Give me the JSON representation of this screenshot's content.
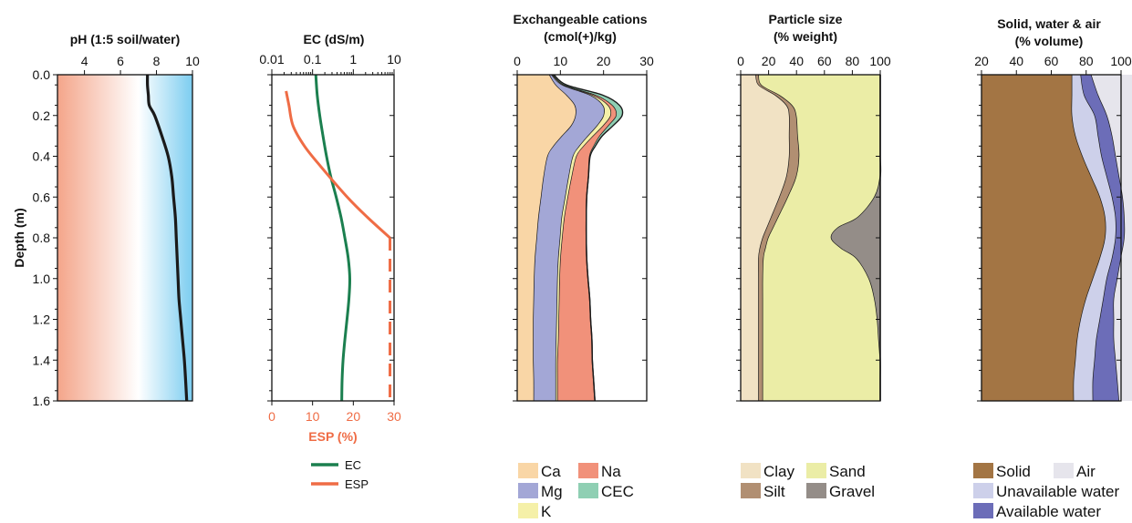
{
  "depth_axis": {
    "label": "Depth (m)",
    "ticks": [
      "0.0",
      "0.2",
      "0.4",
      "0.6",
      "0.8",
      "1.0",
      "1.2",
      "1.4",
      "1.6"
    ]
  },
  "colors": {
    "ph_acid": "#f4a58a",
    "ph_alk": "#7ccdf0",
    "curve": "#1a1a1a",
    "ec": "#1b7f4f",
    "esp": "#ef6c45",
    "Ca": "#f9d6a6",
    "Mg": "#a3a7d6",
    "K": "#f5f0a8",
    "Na": "#f1917a",
    "CEC": "#8fcfb3",
    "Clay": "#f1e2c4",
    "Silt": "#b18f72",
    "Sand": "#ebeda6",
    "Gravel": "#948d88",
    "Solid": "#a37544",
    "Unavailable water": "#cdd0ea",
    "Available water": "#6c6db8",
    "Air": "#e6e5ec"
  },
  "chart_data": [
    {
      "type": "line",
      "title": "pH (1:5 soil/water)",
      "ylabel": "Depth (m)",
      "xlim": [
        2.5,
        10
      ],
      "ylim": [
        0,
        1.6
      ],
      "xticks": [
        "4",
        "6",
        "8",
        "10"
      ],
      "series": [
        {
          "depth": [
            0,
            0.05,
            0.1,
            0.15,
            0.2,
            0.3,
            0.4,
            0.5,
            0.6,
            0.7,
            0.8,
            0.9,
            1.0,
            1.1,
            1.2,
            1.3,
            1.4,
            1.5,
            1.6
          ],
          "ph": [
            7.5,
            7.5,
            7.55,
            7.6,
            7.9,
            8.3,
            8.65,
            8.85,
            8.95,
            9.05,
            9.1,
            9.15,
            9.2,
            9.25,
            9.35,
            9.45,
            9.55,
            9.62,
            9.68
          ]
        }
      ]
    },
    {
      "type": "line",
      "title": "EC (dS/m)",
      "xscale": "log",
      "xlim": [
        0.01,
        10
      ],
      "xticks": [
        "0.01",
        "0.1",
        "1",
        "10"
      ],
      "x2label": "ESP (%)",
      "x2lim": [
        0,
        30
      ],
      "x2ticks": [
        "0",
        "10",
        "20",
        "30"
      ],
      "series": [
        {
          "name": "EC",
          "depth": [
            0.0,
            0.1,
            0.2,
            0.3,
            0.4,
            0.5,
            0.6,
            0.7,
            0.8,
            0.9,
            1.0,
            1.1,
            1.2,
            1.3,
            1.4,
            1.5,
            1.6
          ],
          "ec": [
            0.12,
            0.13,
            0.15,
            0.18,
            0.22,
            0.28,
            0.38,
            0.5,
            0.62,
            0.75,
            0.82,
            0.78,
            0.7,
            0.62,
            0.56,
            0.53,
            0.52
          ]
        },
        {
          "name": "ESP",
          "depth": [
            0.08,
            0.15,
            0.25,
            0.35,
            0.45,
            0.6,
            0.7,
            0.8
          ],
          "esp": [
            3.5,
            4.2,
            5.2,
            8,
            12,
            18.5,
            23.5,
            29
          ]
        },
        {
          "name": "ESP (below)",
          "style": "dashed",
          "depth": [
            0.8,
            1.6
          ],
          "esp": [
            29,
            29
          ]
        }
      ],
      "legend": [
        "EC",
        "ESP"
      ]
    },
    {
      "type": "area",
      "title": "Exchangeable cations\n(cmol(+)/kg)",
      "xlim": [
        0,
        30
      ],
      "xticks": [
        "0",
        "10",
        "20",
        "30"
      ],
      "depth": [
        0,
        0.05,
        0.1,
        0.15,
        0.2,
        0.25,
        0.3,
        0.35,
        0.4,
        0.5,
        0.6,
        0.7,
        0.8,
        0.9,
        1.0,
        1.1,
        1.2,
        1.3,
        1.4,
        1.5,
        1.6
      ],
      "series": [
        {
          "name": "Ca",
          "values": [
            7.5,
            9,
            11.5,
            13.4,
            13.6,
            12.6,
            10.5,
            8.5,
            7.1,
            6.2,
            5.6,
            5,
            4.6,
            4.2,
            4,
            3.9,
            3.8,
            3.8,
            3.8,
            3.9,
            3.9
          ]
        },
        {
          "name": "Mg",
          "values": [
            0.5,
            1.5,
            5.5,
            6.5,
            6.5,
            6,
            6,
            6,
            5.9,
            5.8,
            5.6,
            5.4,
            5.4,
            5.4,
            5.4,
            5.4,
            5.4,
            5.3,
            5.2,
            5.1,
            5.1
          ]
        },
        {
          "name": "K",
          "values": [
            0.2,
            0.3,
            0.6,
            1.2,
            1.6,
            1.4,
            1.2,
            1,
            0.8,
            0.7,
            0.6,
            0.6,
            0.5,
            0.5,
            0.5,
            0.5,
            0.5,
            0.5,
            0.4,
            0.4,
            0.4
          ]
        },
        {
          "name": "Na",
          "values": [
            0.1,
            0.2,
            0.7,
            1,
            1.3,
            1.2,
            1.5,
            2.3,
            3,
            3.8,
            4.3,
            5,
            5.5,
            6,
            6.5,
            7,
            7.3,
            7.7,
            8,
            8.3,
            8.6
          ]
        },
        {
          "name": "CEC",
          "values": [
            0.2,
            0.4,
            1.5,
            1.6,
            1.3,
            1,
            0.5,
            0.3,
            0.1,
            0,
            0,
            0,
            0,
            0,
            0,
            0,
            0,
            0,
            0,
            0,
            0
          ]
        }
      ],
      "legend": [
        "Ca",
        "Na",
        "Mg",
        "CEC",
        "K"
      ]
    },
    {
      "type": "area",
      "title": "Particle size\n(% weight)",
      "xlim": [
        0,
        100
      ],
      "xticks": [
        "0",
        "20",
        "40",
        "60",
        "80",
        "100"
      ],
      "depth": [
        0,
        0.05,
        0.1,
        0.15,
        0.2,
        0.3,
        0.4,
        0.5,
        0.6,
        0.7,
        0.75,
        0.8,
        0.85,
        0.9,
        1.0,
        1.1,
        1.2,
        1.3,
        1.4,
        1.5,
        1.6
      ],
      "series": [
        {
          "name": "Clay",
          "values": [
            11,
            13,
            25,
            33,
            35,
            35,
            35,
            33,
            28,
            22,
            19,
            16,
            14,
            13,
            13,
            13,
            13,
            13,
            13,
            13,
            13
          ]
        },
        {
          "name": "Silt",
          "values": [
            2,
            2,
            3,
            4,
            5,
            6,
            7,
            7,
            6,
            5,
            4.5,
            4,
            4,
            3.5,
            3,
            3,
            3,
            3,
            3,
            3,
            3
          ]
        },
        {
          "name": "Sand",
          "values": [
            87,
            85,
            72,
            63,
            60,
            59,
            58,
            60,
            62,
            57,
            46.5,
            45,
            54,
            66.5,
            76,
            80,
            82,
            83,
            84,
            84,
            84
          ]
        },
        {
          "name": "Gravel",
          "values": [
            0,
            0,
            0,
            0,
            0,
            0,
            0,
            0,
            4,
            16,
            30,
            35,
            28,
            17,
            8,
            4,
            2,
            1,
            0,
            0,
            0
          ]
        }
      ],
      "legend": [
        "Clay",
        "Sand",
        "Silt",
        "Gravel"
      ]
    },
    {
      "type": "area",
      "title": "Solid, water & air\n(% volume)",
      "xlim": [
        20,
        100
      ],
      "xticks": [
        "20",
        "40",
        "60",
        "80",
        "100"
      ],
      "depth": [
        0,
        0.1,
        0.2,
        0.3,
        0.4,
        0.5,
        0.6,
        0.7,
        0.8,
        0.9,
        1.0,
        1.1,
        1.2,
        1.3,
        1.4,
        1.5,
        1.6
      ],
      "series": [
        {
          "name": "Solid",
          "values": [
            52,
            52,
            52,
            54,
            58,
            63,
            68,
            71,
            71,
            68,
            64,
            60,
            57,
            55,
            54,
            53,
            53
          ]
        },
        {
          "name": "Unavailable water",
          "values": [
            5,
            7,
            13,
            13,
            11,
            9,
            7,
            6,
            6,
            7,
            8,
            10,
            11,
            11,
            11,
            11,
            11
          ]
        },
        {
          "name": "Available water",
          "values": [
            6,
            8,
            7,
            8,
            8,
            7,
            6,
            5,
            5,
            5,
            6,
            6,
            8,
            10,
            12,
            14,
            15
          ]
        },
        {
          "name": "Air",
          "values": [
            37,
            33,
            28,
            25,
            23,
            21,
            19,
            18,
            18,
            20,
            22,
            24,
            24,
            24,
            23,
            22,
            21
          ]
        }
      ],
      "legend": [
        "Solid",
        "Air",
        "Unavailable water",
        "Available water"
      ]
    }
  ]
}
